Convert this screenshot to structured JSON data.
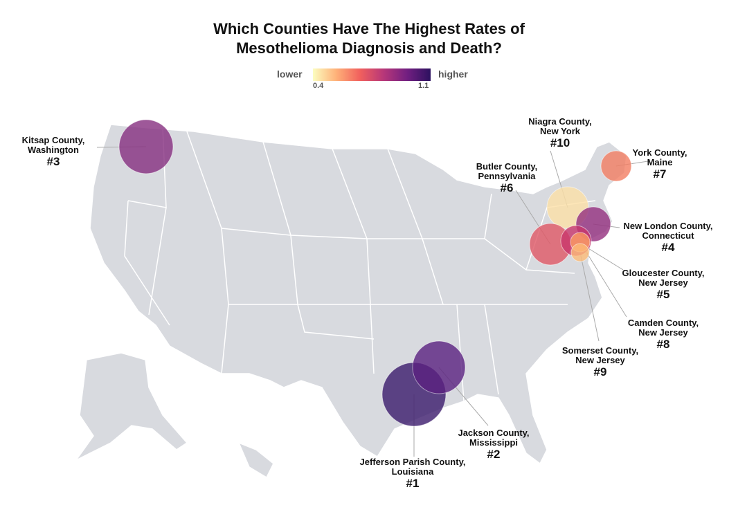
{
  "title_line1": "Which Counties Have The Highest Rates of",
  "title_line2": "Mesothelioma Diagnosis and Death?",
  "legend": {
    "lower": "lower",
    "higher": "higher",
    "min": "0.4",
    "max": "1.1",
    "colorscale": [
      "#fcfdbf",
      "#feb078",
      "#f1605d",
      "#b73779",
      "#721f81",
      "#2c115f"
    ]
  },
  "counties": [
    {
      "id": "jefferson",
      "name": "Jefferson Parish County,",
      "state": "Louisiana",
      "rank": "#1",
      "color": "#3b1a6b"
    },
    {
      "id": "jackson",
      "name": "Jackson County,",
      "state": "Mississippi",
      "rank": "#2",
      "color": "#5a2080"
    },
    {
      "id": "kitsap",
      "name": "Kitsap County,",
      "state": "Washington",
      "rank": "#3",
      "color": "#862e80"
    },
    {
      "id": "newlondon",
      "name": "New London County,",
      "state": "Connecticut",
      "rank": "#4",
      "color": "#942e7e"
    },
    {
      "id": "gloucester",
      "name": "Gloucester County,",
      "state": "New Jersey",
      "rank": "#5",
      "color": "#c8366b"
    },
    {
      "id": "butler",
      "name": "Butler County,",
      "state": "Pennsylvania",
      "rank": "#6",
      "color": "#e05765"
    },
    {
      "id": "york",
      "name": "York County,",
      "state": "Maine",
      "rank": "#7",
      "color": "#f37d62"
    },
    {
      "id": "camden",
      "name": "Camden County,",
      "state": "New Jersey",
      "rank": "#8",
      "color": "#fb9b62"
    },
    {
      "id": "somerset",
      "name": "Somerset County,",
      "state": "New Jersey",
      "rank": "#9",
      "color": "#fdbb78"
    },
    {
      "id": "niagra",
      "name": "Niagra County,",
      "state": "New York",
      "rank": "#10",
      "color": "#fde0a6"
    }
  ]
}
